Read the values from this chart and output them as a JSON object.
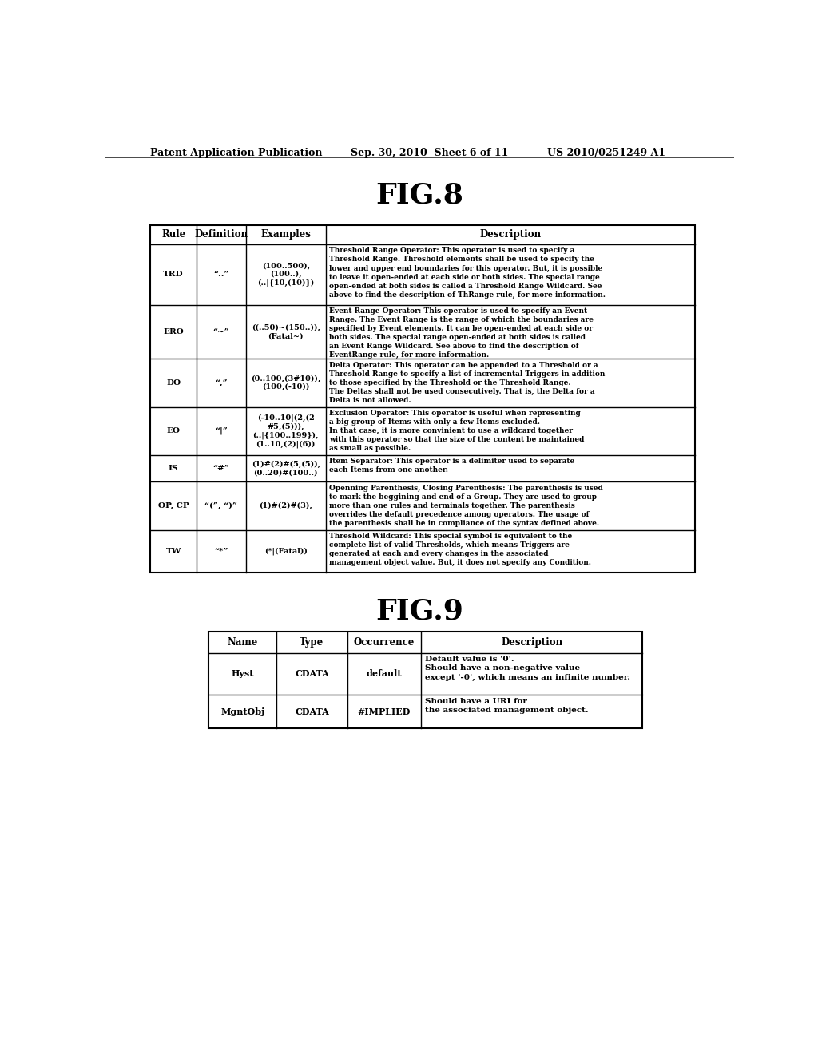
{
  "header_left": "Patent Application Publication",
  "header_mid": "Sep. 30, 2010  Sheet 6 of 11",
  "header_right": "US 2010/0251249 A1",
  "fig8_title": "FIG.8",
  "fig9_title": "FIG.9",
  "fig8_columns": [
    "Rule",
    "Definition",
    "Examples",
    "Description"
  ],
  "fig8_rows": [
    {
      "rule": "TRD",
      "definition": "“..”",
      "examples": "(100..500),\n(100..),\n(..|{10,(10)})",
      "description": "Threshold Range Operator: This operator is used to specify a\nThreshold Range. Threshold elements shall be used to specify the\nlower and upper end boundaries for this operator. But, it is possible\nto leave it open-ended at each side or both sides. The special range\nopen-ended at both sides is called a Threshold Range Wildcard. See\nabove to find the description of ThRange rule, for more information."
    },
    {
      "rule": "ERO",
      "definition": "“~”",
      "examples": "((..50)~(150..)),\n(Fatal~)",
      "description": "Event Range Operator: This operator is used to specify an Event\nRange. The Event Range is the range of which the boundaries are\nspecified by Event elements. It can be open-ended at each side or\nboth sides. The special range open-ended at both sides is called\nan Event Range Wildcard. See above to find the description of\nEventRange rule, for more information."
    },
    {
      "rule": "DO",
      "definition": "“,”",
      "examples": "(0..100,(3#10)),\n(100,(-10))",
      "description": "Delta Operator: This operator can be appended to a Threshold or a\nThreshold Range to specify a list of incremental Triggers in addition\nto those specified by the Threshold or the Threshold Range.\nThe Deltas shall not be used consecutively. That is, the Delta for a\nDelta is not allowed."
    },
    {
      "rule": "EO",
      "definition": "“|”",
      "examples": "(-10..10|(2,(2\n#5,(5))),\n(..|{100..199}),\n(1..10,(2)|(6))",
      "description": "Exclusion Operator: This operator is useful when representing\na big group of Items with only a few Items excluded.\nIn that case, it is more convinient to use a wildcard together\nwith this operator so that the size of the content be maintained\nas small as possible."
    },
    {
      "rule": "IS",
      "definition": "“#”",
      "examples": "(1)#(2)#(5,(5)),\n(0..20)#(100..)",
      "description": "Item Separator: This operator is a delimiter used to separate\neach Items from one another."
    },
    {
      "rule": "OP, CP",
      "definition": "“(”, “)”",
      "examples": "(1)#(2)#(3),",
      "description": "Openning Parenthesis, Closing Parenthesis: The parenthesis is used\nto mark the beggining and end of a Group. They are used to group\nmore than one rules and terminals together. The parenthesis\noverrides the default precedence among operators. The usage of\nthe parenthesis shall be in compliance of the syntax defined above."
    },
    {
      "rule": "TW",
      "definition": "“*”",
      "examples": "(*|(Fatal))",
      "description": "Threshold Wildcard: This special symbol is equivalent to the\ncomplete list of valid Thresholds, which means Triggers are\ngenerated at each and every changes in the associated\nmanagement object value. But, it does not specify any Condition."
    }
  ],
  "fig9_columns": [
    "Name",
    "Type",
    "Occurrence",
    "Description"
  ],
  "fig9_rows": [
    {
      "name": "Hyst",
      "type": "CDATA",
      "occurrence": "default",
      "description": "Default value is '0'.\nShould have a non-negative value\nexcept '-0', which means an infinite number."
    },
    {
      "name": "MgntObj",
      "type": "CDATA",
      "occurrence": "#IMPLIED",
      "description": "Should have a URI for\nthe associated management object."
    }
  ],
  "background_color": "#ffffff",
  "text_color": "#000000",
  "line_color": "#000000"
}
